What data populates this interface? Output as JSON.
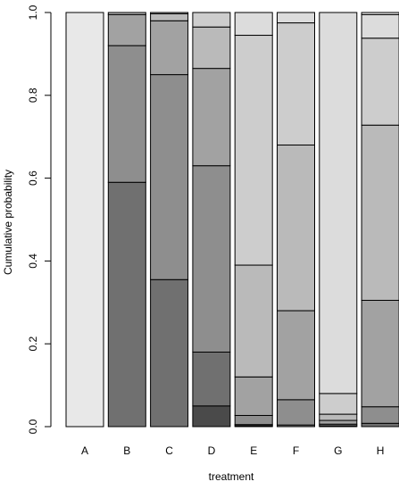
{
  "chart_data": {
    "type": "bar",
    "stacked": true,
    "xlabel": "treatment",
    "ylabel": "Cumulative probability",
    "ylim": [
      0,
      1
    ],
    "yticks": [
      0.0,
      0.2,
      0.4,
      0.6,
      0.8,
      1.0
    ],
    "ytick_labels": [
      "0.0",
      "0.2",
      "0.4",
      "0.6",
      "0.8",
      "1.0"
    ],
    "categories": [
      "A",
      "B",
      "C",
      "D",
      "E",
      "F",
      "G",
      "H"
    ],
    "grid": false,
    "legend": "none",
    "level_colors": [
      "#4a4a4a",
      "#707070",
      "#8e8e8e",
      "#a2a2a2",
      "#bababa",
      "#cdcdcd",
      "#dcdcdc",
      "#e8e8e8"
    ],
    "cumulative_boundaries": [
      [
        0,
        0,
        0,
        0,
        0,
        0,
        0,
        1.0
      ],
      [
        0,
        0.59,
        0.92,
        0.995,
        1.0,
        1.0,
        1.0,
        1.0
      ],
      [
        0,
        0.355,
        0.85,
        0.98,
        0.997,
        1.0,
        1.0,
        1.0
      ],
      [
        0.05,
        0.18,
        0.63,
        0.865,
        0.965,
        1.0,
        1.0,
        1.0
      ],
      [
        0.002,
        0.005,
        0.027,
        0.12,
        0.39,
        0.945,
        1.0,
        1.0
      ],
      [
        0,
        0.004,
        0.065,
        0.28,
        0.68,
        0.975,
        1.0,
        1.0
      ],
      [
        0,
        0.002,
        0.006,
        0.015,
        0.03,
        0.08,
        1.0,
        1.0
      ],
      [
        0,
        0.008,
        0.048,
        0.305,
        0.728,
        0.938,
        0.995,
        1.0
      ]
    ]
  }
}
